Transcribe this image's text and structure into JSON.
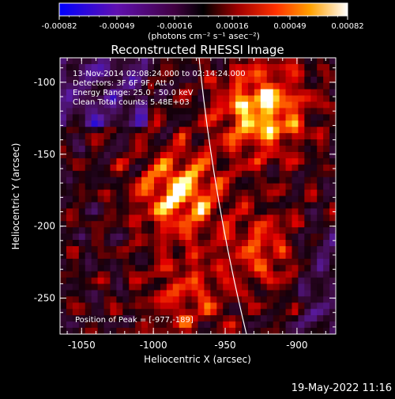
{
  "colorbar": {
    "tick_labels": [
      "-0.00082",
      "-0.00049",
      "-0.00016",
      "0.00016",
      "0.00049",
      "0.00082"
    ],
    "units_label": "(photons cm⁻² s⁻¹ asec⁻²)",
    "range": [
      -0.00082,
      0.00082
    ]
  },
  "plot": {
    "title": "Reconstructed RHESSI Image",
    "xlabel": "Heliocentric X (arcsec)",
    "ylabel": "Heliocentric Y (arcsec)",
    "x_ticks": [
      "-1050",
      "-1000",
      "-950",
      "-900"
    ],
    "y_ticks": [
      "-100",
      "-150",
      "-200",
      "-250"
    ],
    "xlim": [
      -1065,
      -873
    ],
    "ylim": [
      -275,
      -83
    ]
  },
  "annotations": {
    "time_range": "13-Nov-2014 02:08:24.000 to 02:14:24.000",
    "detectors": "Detectors: 3F 6F 9F, Att 0",
    "energy": "Energy Range: 25.0 - 50.0 keV",
    "clean": "Clean    Total counts: 5.48E+03",
    "peak": "Position of Peak = [-977,-189]"
  },
  "footer": {
    "timestamp": "19-May-2022 11:16"
  },
  "colors": {
    "palette": [
      "#0000ff",
      "#5a1aa0",
      "#3a0a3a",
      "#000000",
      "#8a0000",
      "#e00000",
      "#ff6000",
      "#ffb000",
      "#ffff60",
      "#ffffff"
    ]
  }
}
